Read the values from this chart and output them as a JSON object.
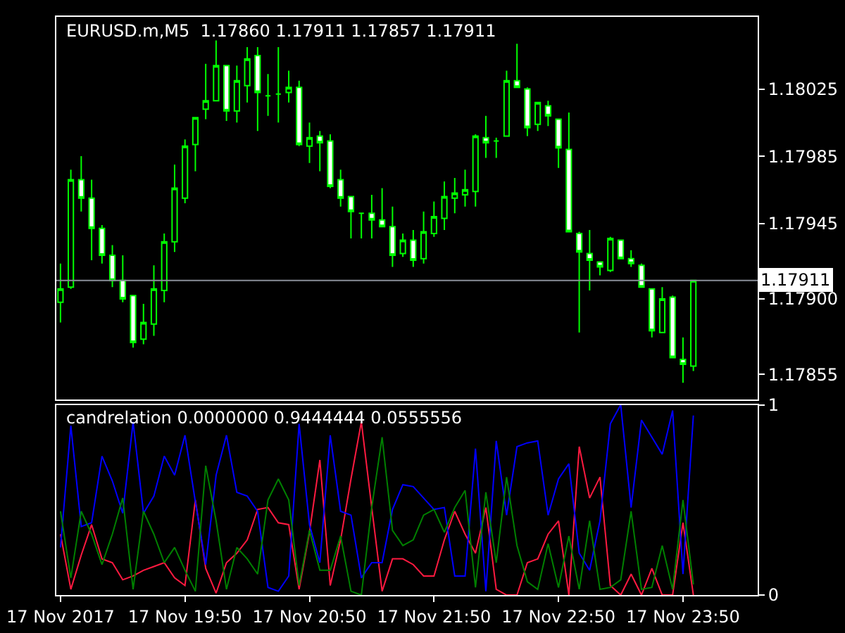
{
  "chart_data": [
    {
      "type": "candlestick",
      "title": "EURUSD.m,M5  1.17860 1.17911 1.17857 1.17911",
      "color": "#00ff00",
      "x": [
        "2017-11-17T18:50",
        "2017-11-17T18:55",
        "2017-11-17T19:00",
        "2017-11-17T19:05",
        "2017-11-17T19:10",
        "2017-11-17T19:15",
        "2017-11-17T19:20",
        "2017-11-17T19:25",
        "2017-11-17T19:30",
        "2017-11-17T19:35",
        "2017-11-17T19:40",
        "2017-11-17T19:45",
        "2017-11-17T19:50",
        "2017-11-17T19:55",
        "2017-11-17T20:00",
        "2017-11-17T20:05",
        "2017-11-17T20:10",
        "2017-11-17T20:15",
        "2017-11-17T20:20",
        "2017-11-17T20:25",
        "2017-11-17T20:30",
        "2017-11-17T20:35",
        "2017-11-17T20:40",
        "2017-11-17T20:45",
        "2017-11-17T20:50",
        "2017-11-17T20:55",
        "2017-11-17T21:00",
        "2017-11-17T21:05",
        "2017-11-17T21:10",
        "2017-11-17T21:15",
        "2017-11-17T21:20",
        "2017-11-17T21:25",
        "2017-11-17T21:30",
        "2017-11-17T21:35",
        "2017-11-17T21:40",
        "2017-11-17T21:45",
        "2017-11-17T21:50",
        "2017-11-17T21:55",
        "2017-11-17T22:00",
        "2017-11-17T22:05",
        "2017-11-17T22:10",
        "2017-11-17T22:15",
        "2017-11-17T22:20",
        "2017-11-17T22:25",
        "2017-11-17T22:30",
        "2017-11-17T22:35",
        "2017-11-17T22:40",
        "2017-11-17T22:45",
        "2017-11-17T22:50",
        "2017-11-17T22:55",
        "2017-11-17T23:00",
        "2017-11-17T23:05",
        "2017-11-17T23:10",
        "2017-11-17T23:15",
        "2017-11-17T23:20",
        "2017-11-17T23:25",
        "2017-11-17T23:30",
        "2017-11-17T23:35",
        "2017-11-17T23:40",
        "2017-11-17T23:45",
        "2017-11-17T23:50",
        "2017-11-17T23:55"
      ],
      "ohlc": [
        [
          1.17898,
          1.17921,
          1.17886,
          1.17906
        ],
        [
          1.17907,
          1.17977,
          1.17906,
          1.17971
        ],
        [
          1.17971,
          1.17985,
          1.17952,
          1.1796
        ],
        [
          1.1796,
          1.17971,
          1.17923,
          1.17942
        ],
        [
          1.17942,
          1.17944,
          1.17921,
          1.17926
        ],
        [
          1.17926,
          1.17932,
          1.17907,
          1.17911
        ],
        [
          1.17911,
          1.17926,
          1.17898,
          1.179
        ],
        [
          1.17902,
          1.17902,
          1.17871,
          1.17874
        ],
        [
          1.17876,
          1.17897,
          1.17873,
          1.17886
        ],
        [
          1.17885,
          1.1792,
          1.17878,
          1.17906
        ],
        [
          1.17905,
          1.17939,
          1.17898,
          1.17934
        ],
        [
          1.17934,
          1.1798,
          1.17928,
          1.17966
        ],
        [
          1.1796,
          1.17995,
          1.17957,
          1.17991
        ],
        [
          1.17992,
          1.18008,
          1.17976,
          1.18008
        ],
        [
          1.18013,
          1.1804,
          1.18007,
          1.18018
        ],
        [
          1.18018,
          1.18054,
          1.18018,
          1.18039
        ],
        [
          1.18039,
          1.18039,
          1.18006,
          1.18012
        ],
        [
          1.18012,
          1.18039,
          1.18005,
          1.1803
        ],
        [
          1.18027,
          1.1805,
          1.18017,
          1.18043
        ],
        [
          1.18045,
          1.1805,
          1.18,
          1.18023
        ],
        [
          1.18021,
          1.18034,
          1.18009,
          1.18021
        ],
        [
          1.18022,
          1.1805,
          1.18005,
          1.18022
        ],
        [
          1.18023,
          1.18036,
          1.18017,
          1.18026
        ],
        [
          1.18026,
          1.1803,
          1.17991,
          1.17992
        ],
        [
          1.17991,
          1.18005,
          1.17981,
          1.17996
        ],
        [
          1.17997,
          1.18,
          1.17976,
          1.17993
        ],
        [
          1.17994,
          1.17998,
          1.17966,
          1.17967
        ],
        [
          1.17971,
          1.17977,
          1.17955,
          1.1796
        ],
        [
          1.17961,
          1.17961,
          1.17936,
          1.17952
        ],
        [
          1.17951,
          1.17951,
          1.17936,
          1.17951
        ],
        [
          1.17951,
          1.17962,
          1.17936,
          1.17947
        ],
        [
          1.17947,
          1.17966,
          1.17943,
          1.17943
        ],
        [
          1.17943,
          1.17955,
          1.17919,
          1.17926
        ],
        [
          1.17927,
          1.17939,
          1.17925,
          1.17935
        ],
        [
          1.17935,
          1.17941,
          1.17919,
          1.17923
        ],
        [
          1.17924,
          1.17952,
          1.17921,
          1.1794
        ],
        [
          1.17939,
          1.17958,
          1.17937,
          1.17949
        ],
        [
          1.17948,
          1.1797,
          1.17941,
          1.17961
        ],
        [
          1.1796,
          1.17972,
          1.17951,
          1.17963
        ],
        [
          1.17962,
          1.17977,
          1.17955,
          1.17965
        ],
        [
          1.17964,
          1.17998,
          1.17955,
          1.17997
        ],
        [
          1.17996,
          1.18009,
          1.17984,
          1.17993
        ],
        [
          1.17994,
          1.17996,
          1.17984,
          1.17994
        ],
        [
          1.17997,
          1.18036,
          1.17997,
          1.1803
        ],
        [
          1.1803,
          1.18052,
          1.18026,
          1.18026
        ],
        [
          1.18025,
          1.18026,
          1.17997,
          1.18002
        ],
        [
          1.18004,
          1.18017,
          1.18,
          1.18017
        ],
        [
          1.18015,
          1.18018,
          1.18003,
          1.18009
        ],
        [
          1.18007,
          1.18007,
          1.17978,
          1.1799
        ],
        [
          1.17989,
          1.18011,
          1.1794,
          1.1794
        ],
        [
          1.17939,
          1.1794,
          1.1788,
          1.17928
        ],
        [
          1.17927,
          1.17941,
          1.17905,
          1.17923
        ],
        [
          1.17922,
          1.17922,
          1.17914,
          1.17919
        ],
        [
          1.17917,
          1.17937,
          1.17916,
          1.17936
        ],
        [
          1.17935,
          1.17935,
          1.17924,
          1.17924
        ],
        [
          1.17924,
          1.17929,
          1.17919,
          1.17921
        ],
        [
          1.1792,
          1.17921,
          1.17907,
          1.17907
        ],
        [
          1.17906,
          1.17906,
          1.17877,
          1.17881
        ],
        [
          1.1788,
          1.17907,
          1.1788,
          1.179
        ],
        [
          1.17901,
          1.17902,
          1.17865,
          1.17865
        ],
        [
          1.17864,
          1.17877,
          1.1785,
          1.17861
        ],
        [
          1.1786,
          1.17911,
          1.17857,
          1.17911
        ]
      ],
      "xlim": [
        "2017-11-17T18:48",
        "2017-11-18T00:26"
      ],
      "ylim": [
        1.1784,
        1.18068
      ],
      "yticks": [
        1.18025,
        1.17985,
        1.17945,
        {
          "value": 1.179,
          "label": "1.17900"
        },
        1.17855
      ],
      "ref_lines": [
        {
          "axis": "y",
          "value": 1.17911,
          "label": "1.17911",
          "color": "#8a8f99"
        }
      ],
      "tick_labels": "y"
    },
    {
      "type": "line",
      "title": "candrelation 0.0000000 0.9444444 0.0555556",
      "x": [
        "2017-11-17T18:50",
        "2017-11-17T18:55",
        "2017-11-17T19:00",
        "2017-11-17T19:05",
        "2017-11-17T19:10",
        "2017-11-17T19:15",
        "2017-11-17T19:20",
        "2017-11-17T19:25",
        "2017-11-17T19:30",
        "2017-11-17T19:35",
        "2017-11-17T19:40",
        "2017-11-17T19:45",
        "2017-11-17T19:50",
        "2017-11-17T19:55",
        "2017-11-17T20:00",
        "2017-11-17T20:05",
        "2017-11-17T20:10",
        "2017-11-17T20:15",
        "2017-11-17T20:20",
        "2017-11-17T20:25",
        "2017-11-17T20:30",
        "2017-11-17T20:35",
        "2017-11-17T20:40",
        "2017-11-17T20:45",
        "2017-11-17T20:50",
        "2017-11-17T20:55",
        "2017-11-17T21:00",
        "2017-11-17T21:05",
        "2017-11-17T21:10",
        "2017-11-17T21:15",
        "2017-11-17T21:20",
        "2017-11-17T21:25",
        "2017-11-17T21:30",
        "2017-11-17T21:35",
        "2017-11-17T21:40",
        "2017-11-17T21:45",
        "2017-11-17T21:50",
        "2017-11-17T21:55",
        "2017-11-17T22:00",
        "2017-11-17T22:05",
        "2017-11-17T22:10",
        "2017-11-17T22:15",
        "2017-11-17T22:20",
        "2017-11-17T22:25",
        "2017-11-17T22:30",
        "2017-11-17T22:35",
        "2017-11-17T22:40",
        "2017-11-17T22:45",
        "2017-11-17T22:50",
        "2017-11-17T22:55",
        "2017-11-17T23:00",
        "2017-11-17T23:05",
        "2017-11-17T23:10",
        "2017-11-17T23:15",
        "2017-11-17T23:20",
        "2017-11-17T23:25",
        "2017-11-17T23:30",
        "2017-11-17T23:35",
        "2017-11-17T23:40",
        "2017-11-17T23:45",
        "2017-11-17T23:50",
        "2017-11-17T23:55"
      ],
      "series": [
        {
          "color": "#ff1a40",
          "values": [
            0.32,
            0.03,
            0.21,
            0.37,
            0.19,
            0.17,
            0.08,
            0.1,
            0.13,
            0.15,
            0.17,
            0.09,
            0.05,
            0.5,
            0.14,
            0.01,
            0.17,
            0.22,
            0.29,
            0.45,
            0.46,
            0.38,
            0.37,
            0.03,
            0.33,
            0.71,
            0.05,
            0.29,
            0.61,
            0.91,
            0.46,
            0.02,
            0.19,
            0.19,
            0.16,
            0.1,
            0.1,
            0.29,
            0.44,
            0.32,
            0.22,
            0.46,
            0.03,
            0,
            0,
            0.17,
            0.19,
            0.32,
            0.39,
            0,
            0.78,
            0.51,
            0.62,
            0.05,
            0,
            0.11,
            0,
            0.14,
            0,
            0,
            0.38,
            0
          ]
        },
        {
          "color": "#0000ff",
          "values": [
            0.25,
            0.89,
            0.36,
            0.38,
            0.73,
            0.6,
            0.43,
            0.91,
            0.43,
            0.52,
            0.73,
            0.63,
            0.84,
            0.49,
            0.16,
            0.63,
            0.84,
            0.54,
            0.52,
            0.44,
            0.04,
            0.02,
            0.1,
            0.9,
            0.37,
            0.17,
            0.84,
            0.44,
            0.42,
            0.09,
            0.17,
            0.17,
            0.45,
            0.58,
            0.57,
            0.51,
            0.45,
            0.46,
            0.1,
            0.1,
            0.77,
            0.02,
            0.81,
            0.42,
            0.78,
            0.8,
            0.81,
            0.42,
            0.61,
            0.69,
            0.22,
            0.13,
            0.39,
            0.9,
            1.0,
            0.46,
            0.92,
            0.83,
            0.74,
            0.97,
            0.11,
            0.944
          ]
        },
        {
          "color": "#008000",
          "values": [
            0.44,
            0.09,
            0.44,
            0.32,
            0.16,
            0.32,
            0.51,
            0.03,
            0.44,
            0.32,
            0.17,
            0.25,
            0.13,
            0.02,
            0.68,
            0.39,
            0.03,
            0.25,
            0.19,
            0.11,
            0.5,
            0.61,
            0.5,
            0.05,
            0.34,
            0.13,
            0.13,
            0.31,
            0.02,
            0,
            0.46,
            0.83,
            0.34,
            0.26,
            0.29,
            0.42,
            0.45,
            0.33,
            0.46,
            0.55,
            0.04,
            0.54,
            0.17,
            0.62,
            0.26,
            0.07,
            0.03,
            0.27,
            0.04,
            0.31,
            0.03,
            0.39,
            0.03,
            0.04,
            0.08,
            0.44,
            0.03,
            0.04,
            0.26,
            0.03,
            0.5,
            0.056
          ]
        }
      ],
      "xlim": [
        "2017-11-17T18:48",
        "2017-11-18T00:26"
      ],
      "xticks": [
        {
          "value": "2017-11-17T18:50",
          "label": "17 Nov 2017"
        },
        {
          "value": "2017-11-17T19:50",
          "label": "17 Nov 19:50"
        },
        {
          "value": "2017-11-17T20:50",
          "label": "17 Nov 20:50"
        },
        {
          "value": "2017-11-17T21:50",
          "label": "17 Nov 21:50"
        },
        {
          "value": "2017-11-17T22:50",
          "label": "17 Nov 22:50"
        },
        {
          "value": "2017-11-17T23:50",
          "label": "17 Nov 23:50"
        }
      ],
      "ylim": [
        0,
        1
      ],
      "yticks": [
        0,
        1
      ]
    }
  ]
}
